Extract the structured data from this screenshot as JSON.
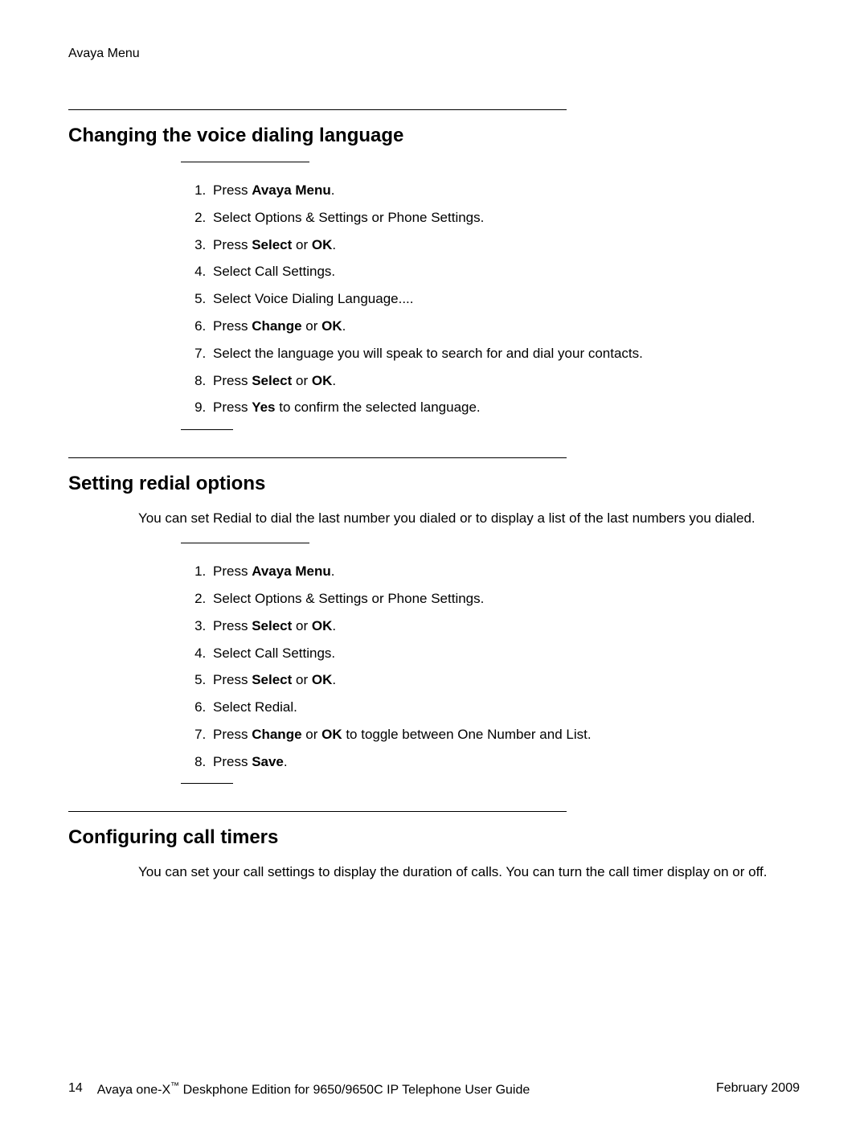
{
  "header_label": "Avaya Menu",
  "sections": [
    {
      "heading": "Changing the voice dialing language",
      "intro": "",
      "steps": [
        [
          {
            "t": "Press "
          },
          {
            "t": "Avaya Menu",
            "b": true
          },
          {
            "t": "."
          }
        ],
        [
          {
            "t": "Select Options & Settings or Phone Settings."
          }
        ],
        [
          {
            "t": "Press "
          },
          {
            "t": "Select",
            "b": true
          },
          {
            "t": " or "
          },
          {
            "t": "OK",
            "b": true
          },
          {
            "t": "."
          }
        ],
        [
          {
            "t": "Select Call Settings."
          }
        ],
        [
          {
            "t": "Select Voice Dialing Language...."
          }
        ],
        [
          {
            "t": "Press "
          },
          {
            "t": "Change",
            "b": true
          },
          {
            "t": " or "
          },
          {
            "t": "OK",
            "b": true
          },
          {
            "t": "."
          }
        ],
        [
          {
            "t": "Select the language you will speak to search for and dial your contacts."
          }
        ],
        [
          {
            "t": "Press "
          },
          {
            "t": "Select",
            "b": true
          },
          {
            "t": " or "
          },
          {
            "t": "OK",
            "b": true
          },
          {
            "t": "."
          }
        ],
        [
          {
            "t": "Press "
          },
          {
            "t": "Yes",
            "b": true
          },
          {
            "t": " to confirm the selected language."
          }
        ]
      ]
    },
    {
      "heading": "Setting redial options",
      "intro": "You can set Redial to dial the last number you dialed or to display a list of the last numbers you dialed.",
      "steps": [
        [
          {
            "t": "Press "
          },
          {
            "t": "Avaya Menu",
            "b": true
          },
          {
            "t": "."
          }
        ],
        [
          {
            "t": "Select Options & Settings or Phone Settings."
          }
        ],
        [
          {
            "t": "Press "
          },
          {
            "t": "Select",
            "b": true
          },
          {
            "t": " or "
          },
          {
            "t": "OK",
            "b": true
          },
          {
            "t": "."
          }
        ],
        [
          {
            "t": "Select Call Settings."
          }
        ],
        [
          {
            "t": "Press "
          },
          {
            "t": "Select",
            "b": true
          },
          {
            "t": " or "
          },
          {
            "t": "OK",
            "b": true
          },
          {
            "t": "."
          }
        ],
        [
          {
            "t": "Select Redial."
          }
        ],
        [
          {
            "t": "Press "
          },
          {
            "t": "Change",
            "b": true
          },
          {
            "t": " or "
          },
          {
            "t": "OK",
            "b": true
          },
          {
            "t": " to toggle between One Number and List."
          }
        ],
        [
          {
            "t": "Press "
          },
          {
            "t": "Save",
            "b": true
          },
          {
            "t": "."
          }
        ]
      ]
    },
    {
      "heading": "Configuring call timers",
      "intro": "You can set your call settings to display the duration of calls. You can turn the call timer display on or off.",
      "steps": []
    }
  ],
  "footer": {
    "page_number": "14",
    "title_pre": "Avaya one-X",
    "title_tm": "™",
    "title_post": " Deskphone Edition for 9650/9650C IP Telephone User Guide",
    "date": "February 2009"
  }
}
